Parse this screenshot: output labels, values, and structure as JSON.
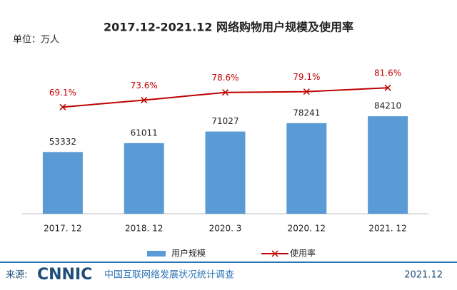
{
  "chart_data": {
    "type": "bar_line",
    "title": "2017.12-2021.12 网络购物用户规模及使用率",
    "subtitle": "单位：万人",
    "categories": [
      "2017. 12",
      "2018. 12",
      "2020. 3",
      "2020. 12",
      "2021. 12"
    ],
    "series": [
      {
        "name": "用户规模",
        "type": "bar",
        "color": "#5b9bd5",
        "values": [
          53332,
          61011,
          71027,
          78241,
          84210
        ]
      },
      {
        "name": "使用率",
        "type": "line",
        "axis": "y2",
        "color": "#c00000",
        "values": [
          69.1,
          73.6,
          78.6,
          79.1,
          81.6
        ],
        "value_labels": [
          "69.1%",
          "73.6%",
          "78.6%",
          "79.1%",
          "81.6%"
        ]
      }
    ],
    "ylim": [
      0,
      160000
    ],
    "y2lim": [
      0,
      120
    ]
  },
  "footer": {
    "source": "来源:",
    "logo": "CNNIC",
    "org": "中国互联网络发展状况统计调查",
    "date": "2021.12"
  }
}
